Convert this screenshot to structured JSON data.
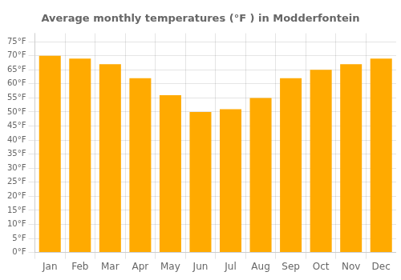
{
  "chart_data": {
    "type": "bar",
    "title": "Average monthly temperatures (°F ) in Modderfontein",
    "categories": [
      "Jan",
      "Feb",
      "Mar",
      "Apr",
      "May",
      "Jun",
      "Jul",
      "Aug",
      "Sep",
      "Oct",
      "Nov",
      "Dec"
    ],
    "values": [
      70,
      69,
      67,
      62,
      56,
      50,
      51,
      55,
      62,
      65,
      67,
      69
    ],
    "color": "#FFAA00",
    "ylim": [
      0,
      78
    ],
    "yticks": [
      {
        "value": 0,
        "label": "0°F"
      },
      {
        "value": 5,
        "label": "5°F"
      },
      {
        "value": 10,
        "label": "10°F"
      },
      {
        "value": 15,
        "label": "15°F"
      },
      {
        "value": 20,
        "label": "20°F"
      },
      {
        "value": 25,
        "label": "25°F"
      },
      {
        "value": 30,
        "label": "30°F"
      },
      {
        "value": 35,
        "label": "35°F"
      },
      {
        "value": 40,
        "label": "40°F"
      },
      {
        "value": 45,
        "label": "45°F"
      },
      {
        "value": 50,
        "label": "50°F"
      },
      {
        "value": 55,
        "label": "55°F"
      },
      {
        "value": 60,
        "label": "60°F"
      },
      {
        "value": 65,
        "label": "65°F"
      },
      {
        "value": 70,
        "label": "70°F"
      },
      {
        "value": 75,
        "label": "75°F"
      }
    ],
    "grid": true
  }
}
